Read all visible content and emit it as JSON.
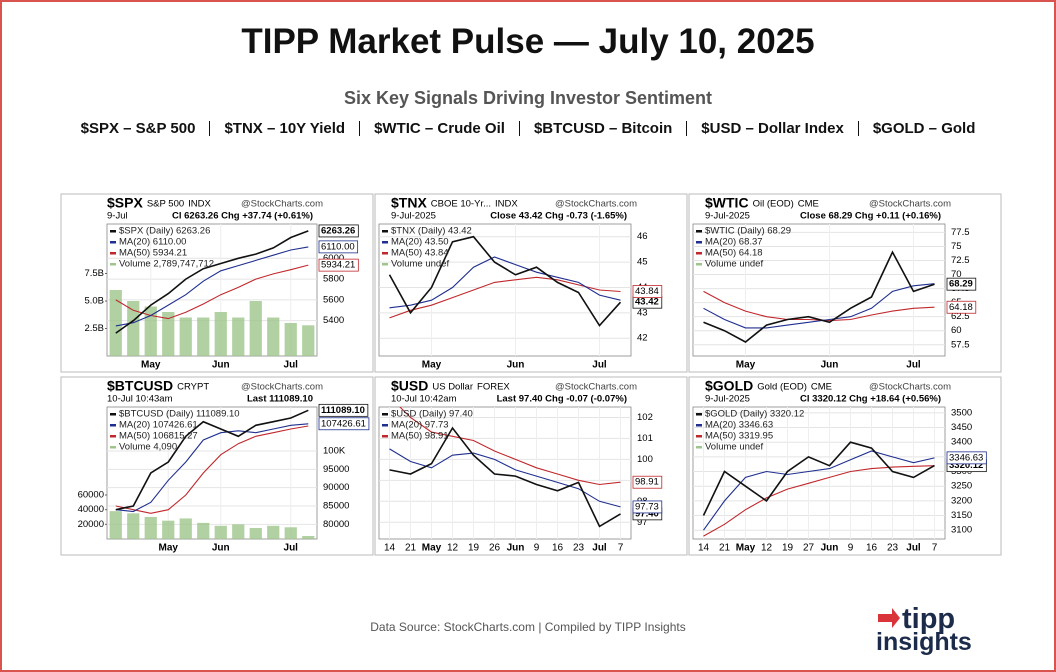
{
  "header": {
    "title": "TIPP Market Pulse — July 10, 2025",
    "subtitle": "Six Key Signals Driving Investor Sentiment",
    "symbols": [
      "$SPX – S&P 500",
      "$TNX – 10Y Yield",
      "$WTIC – Crude Oil",
      "$BTCUSD – Bitcoin",
      "$USD – Dollar Index",
      "$GOLD – Gold"
    ]
  },
  "footer": {
    "source": "Data Source: StockCharts.com | Compiled by TIPP Insights"
  },
  "logo": {
    "line1": "tipp",
    "line2": "insights"
  },
  "chart_data": [
    {
      "type": "line",
      "title": "$SPX",
      "name": "S&P 500",
      "exchange": "INDX",
      "watermark": "@StockCharts.com",
      "date": "9-Jul",
      "stats": "Cl 6263.26  Chg +37.74 (+0.61%)",
      "categories": [
        null,
        null,
        "May",
        null,
        null,
        null,
        "Jun",
        null,
        null,
        null,
        "Jul",
        null
      ],
      "ylim": [
        5060,
        6330
      ],
      "yticks": [
        5400,
        5600,
        5800,
        6000
      ],
      "y2lim": [
        0,
        12000000000
      ],
      "y2ticks": [
        {
          "value": 2500000000,
          "label": "2.5B"
        },
        {
          "value": 5000000000,
          "label": "5.0B"
        },
        {
          "value": 7500000000,
          "label": "7.5B"
        }
      ],
      "series": [
        {
          "name": "$SPX (Daily) 6263.26",
          "color": "#111111",
          "values": [
            5280,
            5400,
            5550,
            5660,
            5800,
            5900,
            5950,
            6000,
            6040,
            6100,
            6200,
            6263.26
          ],
          "end_label": "6263.26"
        },
        {
          "name": "MA(20) 6110.00",
          "color": "#1f2f8f",
          "values": [
            5350,
            5380,
            5450,
            5550,
            5650,
            5780,
            5880,
            5930,
            5980,
            6030,
            6080,
            6110
          ],
          "end_label": "6110.00"
        },
        {
          "name": "MA(50) 5934.21",
          "color": "#c0282c",
          "values": [
            5600,
            5500,
            5450,
            5420,
            5480,
            5560,
            5650,
            5720,
            5800,
            5850,
            5890,
            5934.21
          ],
          "end_label": "5934.21"
        },
        {
          "name": "Volume 2,789,747,712",
          "color": "#9dc58c",
          "axis": "y2",
          "values": [
            6000000000,
            5000000000,
            4500000000,
            4000000000,
            3500000000,
            3500000000,
            4000000000,
            3500000000,
            5000000000,
            3500000000,
            3000000000,
            2789747712
          ]
        }
      ]
    },
    {
      "type": "line",
      "title": "$TNX",
      "name": "CBOE 10-Yr...",
      "exchange": "INDX",
      "watermark": "@StockCharts.com",
      "date": "9-Jul-2025",
      "stats": "Close 43.42  Chg -0.73 (-1.65%)",
      "categories": [
        null,
        null,
        "May",
        null,
        null,
        null,
        "Jun",
        null,
        null,
        null,
        "Jul",
        null
      ],
      "ylim": [
        41.3,
        46.5
      ],
      "yticks": [
        42,
        43,
        44,
        45,
        46
      ],
      "series": [
        {
          "name": "$TNX (Daily) 43.42",
          "color": "#111111",
          "values": [
            44.5,
            43,
            44,
            45.8,
            46,
            45,
            44.5,
            44.8,
            44.2,
            43.8,
            42.5,
            43.42
          ],
          "end_label": "43.42"
        },
        {
          "name": "MA(20) 43.50",
          "color": "#1f2f8f",
          "values": [
            43.2,
            43.3,
            43.5,
            44,
            44.8,
            45.2,
            44.9,
            44.6,
            44.4,
            44.2,
            43.7,
            43.5
          ]
        },
        {
          "name": "MA(50) 43.84",
          "color": "#c0282c",
          "values": [
            42.8,
            43.1,
            43.3,
            43.6,
            43.9,
            44.2,
            44.3,
            44.4,
            44.3,
            44.1,
            43.9,
            43.84
          ],
          "end_label": "43.84"
        },
        {
          "name": "Volume undef",
          "color": "#9dc58c"
        }
      ]
    },
    {
      "type": "line",
      "title": "$WTIC",
      "name": "Oil (EOD)",
      "exchange": "CME",
      "watermark": "@StockCharts.com",
      "date": "9-Jul-2025",
      "stats": "Close 68.29  Chg +0.11 (+0.16%)",
      "categories": [
        null,
        null,
        "May",
        null,
        null,
        null,
        "Jun",
        null,
        null,
        null,
        "Jul",
        null
      ],
      "ylim": [
        55.5,
        79
      ],
      "yticks": [
        57.5,
        60,
        62.5,
        65,
        67.5,
        70,
        72.5,
        75,
        77.5
      ],
      "series": [
        {
          "name": "$WTIC (Daily) 68.29",
          "color": "#111111",
          "values": [
            61.5,
            60,
            58,
            61,
            62,
            62.5,
            61.5,
            64,
            66,
            74,
            67,
            68.29
          ],
          "end_label": "68.29"
        },
        {
          "name": "MA(20) 68.37",
          "color": "#1f2f8f",
          "values": [
            64,
            62,
            60.5,
            60.5,
            61,
            61.5,
            62,
            62.5,
            64,
            67,
            68,
            68.37
          ]
        },
        {
          "name": "MA(50) 64.18",
          "color": "#c0282c",
          "values": [
            67,
            65,
            63.5,
            62.5,
            62,
            62,
            61.8,
            62,
            62.8,
            63.5,
            64,
            64.18
          ],
          "end_label": "64.18"
        },
        {
          "name": "Volume undef",
          "color": "#9dc58c"
        }
      ]
    },
    {
      "type": "line",
      "title": "$BTCUSD",
      "exchange": "CRYPT",
      "watermark": "@StockCharts.com",
      "date": "10-Jul 10:43am",
      "stats": "Last 111089.10",
      "categories": [
        null,
        null,
        null,
        "May",
        null,
        null,
        "Jun",
        null,
        null,
        null,
        "Jul",
        null
      ],
      "ylim": [
        76000,
        112000
      ],
      "yticks": [
        80000,
        85000,
        90000,
        95000,
        {
          "value": 100000,
          "label": "100K"
        }
      ],
      "y2lim": [
        0,
        180000
      ],
      "y2ticks": [
        20000,
        40000,
        60000
      ],
      "series": [
        {
          "name": "$BTCUSD (Daily) 111089.10",
          "color": "#111111",
          "values": [
            84000,
            85000,
            94000,
            97000,
            104000,
            108000,
            106000,
            104000,
            107000,
            108000,
            109000,
            111089.1
          ],
          "end_label": "111089.10"
        },
        {
          "name": "MA(20) 107426.61",
          "color": "#1f2f8f",
          "values": [
            84000,
            83500,
            86000,
            92000,
            97000,
            103000,
            105000,
            105500,
            105000,
            106000,
            107000,
            107426.61
          ],
          "end_label": "107426.61"
        },
        {
          "name": "MA(50) 106815.27",
          "color": "#c0282c",
          "values": [
            85000,
            84000,
            83000,
            84000,
            88000,
            94000,
            99000,
            102000,
            104000,
            105000,
            106000,
            106815.27
          ]
        },
        {
          "name": "Volume 4,090",
          "color": "#9dc58c",
          "axis": "y2",
          "values": [
            38000,
            35000,
            30000,
            25000,
            28000,
            22000,
            18000,
            20000,
            15000,
            18000,
            16000,
            4090
          ]
        }
      ]
    },
    {
      "type": "line",
      "title": "$USD",
      "name": "US Dollar",
      "exchange": "FOREX",
      "watermark": "@StockCharts.com",
      "date": "10-Jul 10:42am",
      "stats": "Last 97.40  Chg -0.07 (-0.07%)",
      "categories": [
        "14",
        "21",
        "May",
        "12",
        "19",
        "26",
        "Jun",
        "9",
        "16",
        "23",
        "Jul",
        "7"
      ],
      "ylim": [
        96.2,
        102.5
      ],
      "yticks": [
        97,
        98,
        99,
        100,
        101,
        102
      ],
      "series": [
        {
          "name": "$USD (Daily) 97.40",
          "color": "#111111",
          "values": [
            99.5,
            99.3,
            99.8,
            101.5,
            100.2,
            99.3,
            99.2,
            98.8,
            98.5,
            98.9,
            96.8,
            97.4
          ],
          "end_label": "97.40"
        },
        {
          "name": "MA(20) 97.73",
          "color": "#1f2f8f",
          "values": [
            100.5,
            99.9,
            99.6,
            100.2,
            100.3,
            100,
            99.5,
            99.2,
            98.9,
            98.6,
            98,
            97.73
          ],
          "end_label": "97.73"
        },
        {
          "name": "MA(50) 98.91",
          "color": "#c0282c",
          "values": [
            103,
            102,
            101.3,
            101.1,
            100.9,
            100.4,
            100,
            99.6,
            99.3,
            99,
            98.8,
            98.91
          ],
          "end_label": "98.91"
        }
      ]
    },
    {
      "type": "line",
      "title": "$GOLD",
      "name": "Gold (EOD)",
      "exchange": "CME",
      "watermark": "@StockCharts.com",
      "date": "9-Jul-2025",
      "stats": "Cl 3320.12  Chg +18.64 (+0.56%)",
      "categories": [
        "14",
        "21",
        "May",
        "12",
        "19",
        "27",
        "Jun",
        "9",
        "16",
        "23",
        "Jul",
        "7"
      ],
      "ylim": [
        3070,
        3520
      ],
      "yticks": [
        3100,
        3150,
        3200,
        3250,
        3300,
        3350,
        3400,
        3450,
        3500
      ],
      "series": [
        {
          "name": "$GOLD (Daily) 3320.12",
          "color": "#111111",
          "values": [
            3150,
            3300,
            3250,
            3200,
            3300,
            3350,
            3320,
            3400,
            3380,
            3300,
            3280,
            3320.12
          ],
          "end_label": "3320.12"
        },
        {
          "name": "MA(20) 3346.63",
          "color": "#1f2f8f",
          "values": [
            3100,
            3200,
            3280,
            3300,
            3290,
            3300,
            3310,
            3340,
            3370,
            3350,
            3330,
            3346.63
          ],
          "end_label": "3346.63"
        },
        {
          "name": "MA(50) 3319.95",
          "color": "#c0282c",
          "values": [
            3080,
            3120,
            3170,
            3210,
            3240,
            3260,
            3280,
            3300,
            3310,
            3315,
            3318,
            3319.95
          ]
        },
        {
          "name": "Volume undef",
          "color": "#9dc58c"
        }
      ]
    }
  ]
}
